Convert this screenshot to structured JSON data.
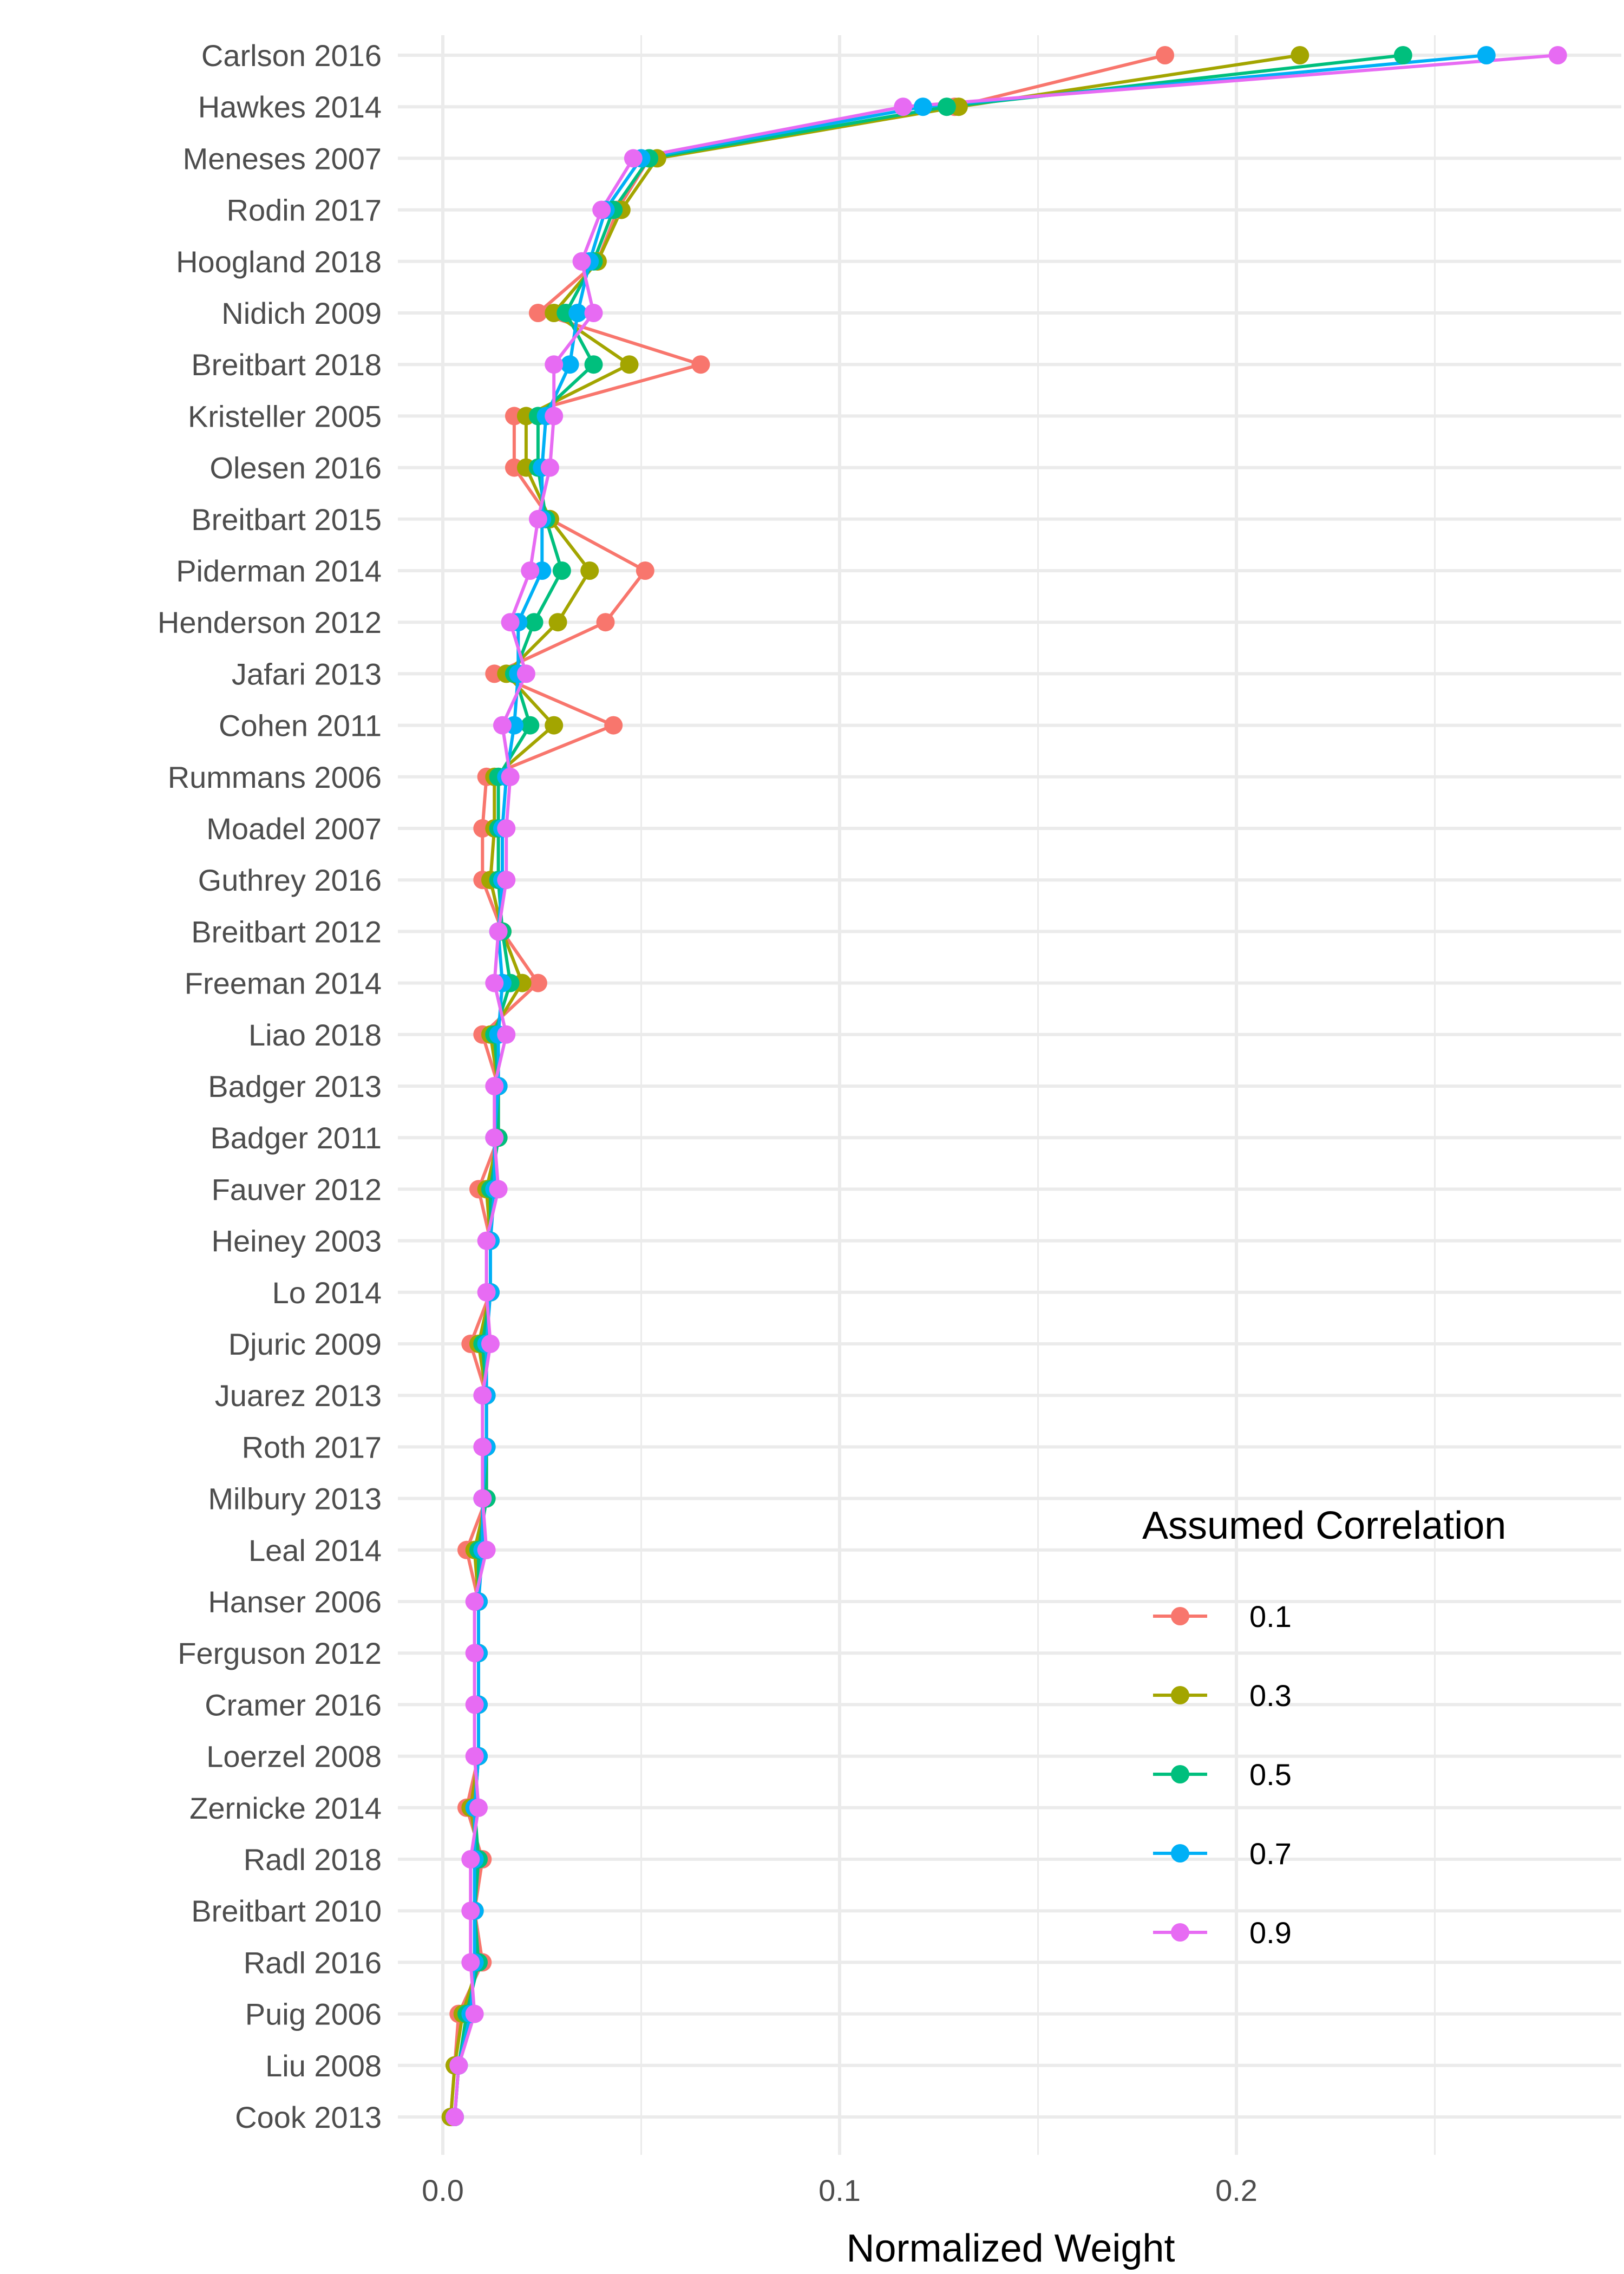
{
  "chart_data": {
    "type": "line",
    "orientation": "horizontal",
    "xlabel": "Normalized Weight",
    "ylabel": "",
    "xlim": [
      0.0,
      0.28
    ],
    "xticks": [
      {
        "value": 0.0,
        "label": "0.0"
      },
      {
        "value": 0.1,
        "label": "0.1"
      },
      {
        "value": 0.2,
        "label": "0.2"
      }
    ],
    "grid": true,
    "legend": {
      "title": "Assumed Correlation",
      "position": "right"
    },
    "categories": [
      "Carlson 2016",
      "Hawkes 2014",
      "Meneses 2007",
      "Rodin 2017",
      "Hoogland 2018",
      "Nidich 2009",
      "Breitbart 2018",
      "Kristeller 2005",
      "Olesen 2016",
      "Breitbart 2015",
      "Piderman 2014",
      "Henderson 2012",
      "Jafari 2013",
      "Cohen 2011",
      "Rummans 2006",
      "Moadel 2007",
      "Guthrey 2016",
      "Breitbart 2012",
      "Freeman 2014",
      "Liao 2018",
      "Badger 2013",
      "Badger 2011",
      "Fauver 2012",
      "Heiney 2003",
      "Lo 2014",
      "Djuric 2009",
      "Juarez 2013",
      "Roth 2017",
      "Milbury 2013",
      "Leal 2014",
      "Hanser 2006",
      "Ferguson 2012",
      "Cramer 2016",
      "Loerzel 2008",
      "Zernicke 2014",
      "Radl 2018",
      "Breitbart 2010",
      "Radl 2016",
      "Puig 2006",
      "Liu 2008",
      "Cook 2013"
    ],
    "series": [
      {
        "name": "0.1",
        "color": "#F8766D",
        "values": [
          0.182,
          0.129,
          0.052,
          0.044,
          0.039,
          0.024,
          0.065,
          0.018,
          0.018,
          0.027,
          0.051,
          0.041,
          0.013,
          0.043,
          0.011,
          0.01,
          0.01,
          0.015,
          0.024,
          0.01,
          0.014,
          0.014,
          0.009,
          0.012,
          0.012,
          0.007,
          0.011,
          0.011,
          0.011,
          0.006,
          0.009,
          0.009,
          0.009,
          0.009,
          0.006,
          0.01,
          0.008,
          0.01,
          0.004,
          0.003,
          0.002
        ]
      },
      {
        "name": "0.3",
        "color": "#A3A500",
        "values": [
          0.216,
          0.13,
          0.054,
          0.045,
          0.039,
          0.028,
          0.047,
          0.021,
          0.021,
          0.027,
          0.037,
          0.029,
          0.016,
          0.028,
          0.013,
          0.013,
          0.012,
          0.015,
          0.02,
          0.012,
          0.014,
          0.014,
          0.011,
          0.012,
          0.012,
          0.009,
          0.011,
          0.011,
          0.011,
          0.008,
          0.009,
          0.009,
          0.009,
          0.009,
          0.007,
          0.009,
          0.008,
          0.009,
          0.005,
          0.003,
          0.002
        ]
      },
      {
        "name": "0.5",
        "color": "#00BF7D",
        "values": [
          0.242,
          0.127,
          0.052,
          0.043,
          0.038,
          0.031,
          0.038,
          0.024,
          0.024,
          0.026,
          0.03,
          0.023,
          0.018,
          0.022,
          0.014,
          0.014,
          0.014,
          0.015,
          0.017,
          0.013,
          0.014,
          0.014,
          0.012,
          0.012,
          0.012,
          0.01,
          0.011,
          0.011,
          0.011,
          0.009,
          0.009,
          0.009,
          0.009,
          0.009,
          0.008,
          0.009,
          0.008,
          0.009,
          0.006,
          0.004,
          0.003
        ]
      },
      {
        "name": "0.7",
        "color": "#00B0F6",
        "values": [
          0.263,
          0.121,
          0.05,
          0.041,
          0.037,
          0.034,
          0.032,
          0.026,
          0.025,
          0.025,
          0.025,
          0.019,
          0.019,
          0.018,
          0.016,
          0.015,
          0.015,
          0.014,
          0.015,
          0.014,
          0.014,
          0.013,
          0.013,
          0.012,
          0.012,
          0.011,
          0.011,
          0.011,
          0.01,
          0.01,
          0.009,
          0.009,
          0.009,
          0.009,
          0.008,
          0.008,
          0.008,
          0.008,
          0.007,
          0.004,
          0.003
        ]
      },
      {
        "name": "0.9",
        "color": "#E76BF3",
        "values": [
          0.281,
          0.116,
          0.048,
          0.04,
          0.035,
          0.038,
          0.028,
          0.028,
          0.027,
          0.024,
          0.022,
          0.017,
          0.021,
          0.015,
          0.017,
          0.016,
          0.016,
          0.014,
          0.013,
          0.016,
          0.013,
          0.013,
          0.014,
          0.011,
          0.011,
          0.012,
          0.01,
          0.01,
          0.01,
          0.011,
          0.008,
          0.008,
          0.008,
          0.008,
          0.009,
          0.007,
          0.007,
          0.007,
          0.008,
          0.004,
          0.003
        ]
      }
    ]
  }
}
